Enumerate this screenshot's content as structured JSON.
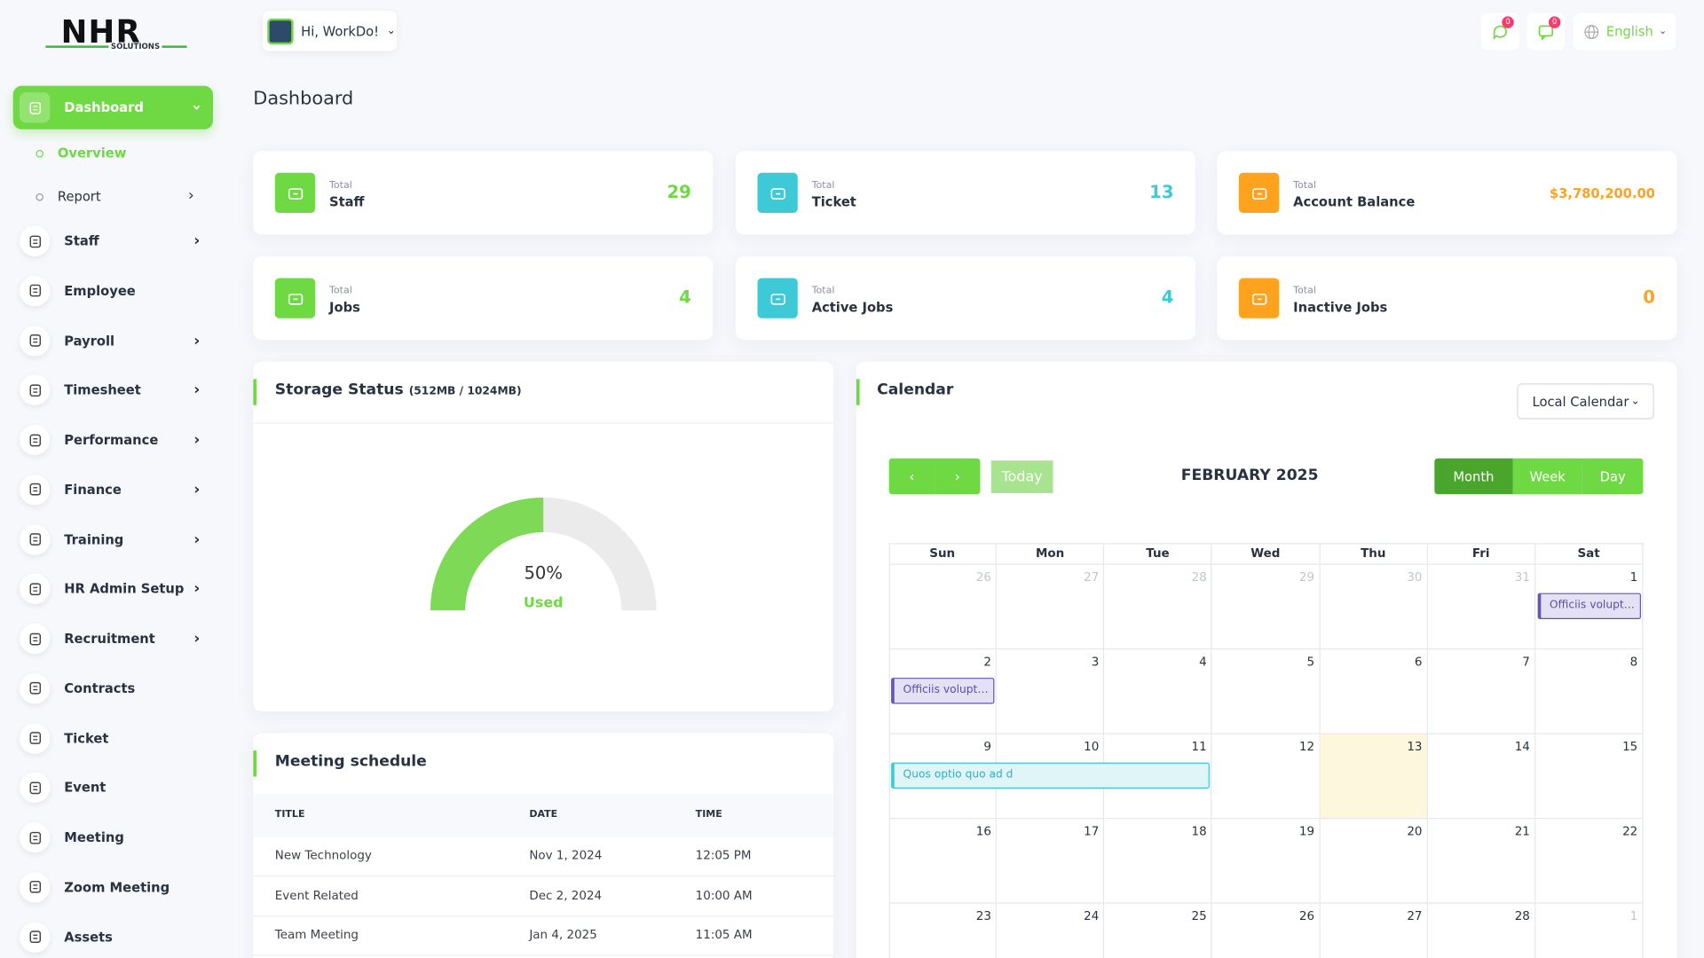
{
  "logo": {
    "title": "NHR",
    "subtitle": "SOLUTIONS"
  },
  "header": {
    "greeting": "Hi, WorkDo!",
    "notifications": [
      "0",
      "0"
    ],
    "language": "English"
  },
  "sidebar": {
    "items": [
      "Dashboard",
      "Staff",
      "Employee",
      "Payroll",
      "Timesheet",
      "Performance",
      "Finance",
      "Training",
      "HR Admin Setup",
      "Recruitment",
      "Contracts",
      "Ticket",
      "Event",
      "Meeting",
      "Zoom Meeting",
      "Assets"
    ],
    "submenu": [
      "Overview",
      "Report"
    ]
  },
  "page_title": "Dashboard",
  "stats": [
    {
      "caption": "Total",
      "label": "Staff",
      "value": "29"
    },
    {
      "caption": "Total",
      "label": "Ticket",
      "value": "13"
    },
    {
      "caption": "Total",
      "label": "Account Balance",
      "value": "$3,780,200.00"
    },
    {
      "caption": "Total",
      "label": "Jobs",
      "value": "4"
    },
    {
      "caption": "Total",
      "label": "Active Jobs",
      "value": "4"
    },
    {
      "caption": "Total",
      "label": "Inactive Jobs",
      "value": "0"
    }
  ],
  "storage": {
    "title": "Storage Status",
    "detail": "(512MB / 1024MB)",
    "percent": "50%",
    "caption": "Used"
  },
  "meetings": {
    "title": "Meeting schedule",
    "columns": [
      "TITLE",
      "DATE",
      "TIME"
    ],
    "rows": [
      [
        "New Technology",
        "Nov 1, 2024",
        "12:05 PM"
      ],
      [
        "Event Related",
        "Dec 2, 2024",
        "10:00 AM"
      ],
      [
        "Team Meeting",
        "Jan 4, 2025",
        "11:05 AM"
      ]
    ]
  },
  "calendar": {
    "title": "Calendar",
    "source": "Local Calendar",
    "today": "Today",
    "month": "FEBRUARY 2025",
    "views": [
      "Month",
      "Week",
      "Day"
    ],
    "weekdays": [
      "Sun",
      "Mon",
      "Tue",
      "Wed",
      "Thu",
      "Fri",
      "Sat"
    ],
    "weeks": [
      [
        "26",
        "27",
        "28",
        "29",
        "30",
        "31",
        "1"
      ],
      [
        "2",
        "3",
        "4",
        "5",
        "6",
        "7",
        "8"
      ],
      [
        "9",
        "10",
        "11",
        "12",
        "13",
        "14",
        "15"
      ],
      [
        "16",
        "17",
        "18",
        "19",
        "20",
        "21",
        "22"
      ],
      [
        "23",
        "24",
        "25",
        "26",
        "27",
        "28",
        "1"
      ]
    ],
    "events": [
      "Officiis voluptas c",
      "Officiis voluptas c",
      "Quos optio quo ad d"
    ]
  }
}
